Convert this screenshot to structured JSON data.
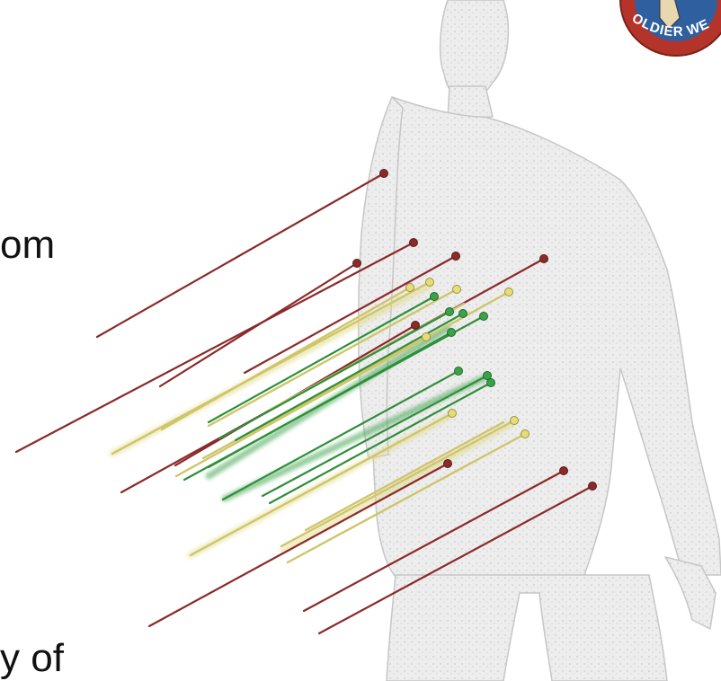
{
  "slide": {
    "text_fragments": [
      "om",
      "y of"
    ]
  },
  "logo": {
    "partial_text": "OLDIER WE",
    "colors": {
      "ring": "#b5342a",
      "inner": "#2f5f9f",
      "text": "#ffffff"
    }
  },
  "figure": {
    "description_colors": {
      "body": "#d9d9d9",
      "red_track": "#8b2a2a",
      "yellow_track": "#d9d27a",
      "green_track": "#2f8f3a"
    },
    "track_counts": {
      "red": 9,
      "yellow": 10,
      "green": 8
    }
  }
}
